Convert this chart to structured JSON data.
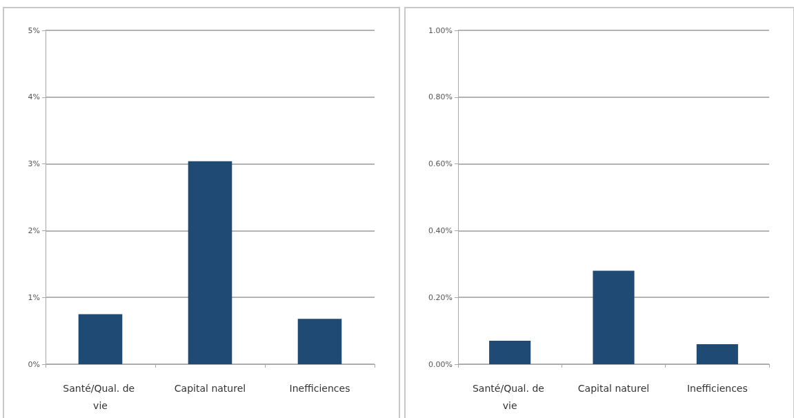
{
  "chart_data": [
    {
      "type": "bar",
      "categories": [
        "Santé/Qual. de vie",
        "Capital naturel",
        "Inefficiences"
      ],
      "values": [
        0.75,
        3.04,
        0.68
      ],
      "color": "#1f4a73",
      "ylim": [
        0,
        5
      ],
      "yticks": [
        {
          "value": 0,
          "label": "0%"
        },
        {
          "value": 1,
          "label": "1%"
        },
        {
          "value": 2,
          "label": "2%"
        },
        {
          "value": 3,
          "label": "3%"
        },
        {
          "value": 4,
          "label": "4%"
        },
        {
          "value": 5,
          "label": "5%"
        }
      ],
      "grid": "y"
    },
    {
      "type": "bar",
      "categories": [
        "Santé/Qual. de vie",
        "Capital naturel",
        "Inefficiences"
      ],
      "values": [
        0.07,
        0.28,
        0.06
      ],
      "color": "#1f4a73",
      "ylim": [
        0,
        1
      ],
      "yticks": [
        {
          "value": 0,
          "label": "0.00%"
        },
        {
          "value": 0.2,
          "label": "0.20%"
        },
        {
          "value": 0.4,
          "label": "0.40%"
        },
        {
          "value": 0.6,
          "label": "0.60%"
        },
        {
          "value": 0.8,
          "label": "0.80%"
        },
        {
          "value": 1,
          "label": "1.00%"
        }
      ],
      "grid": "y"
    }
  ]
}
